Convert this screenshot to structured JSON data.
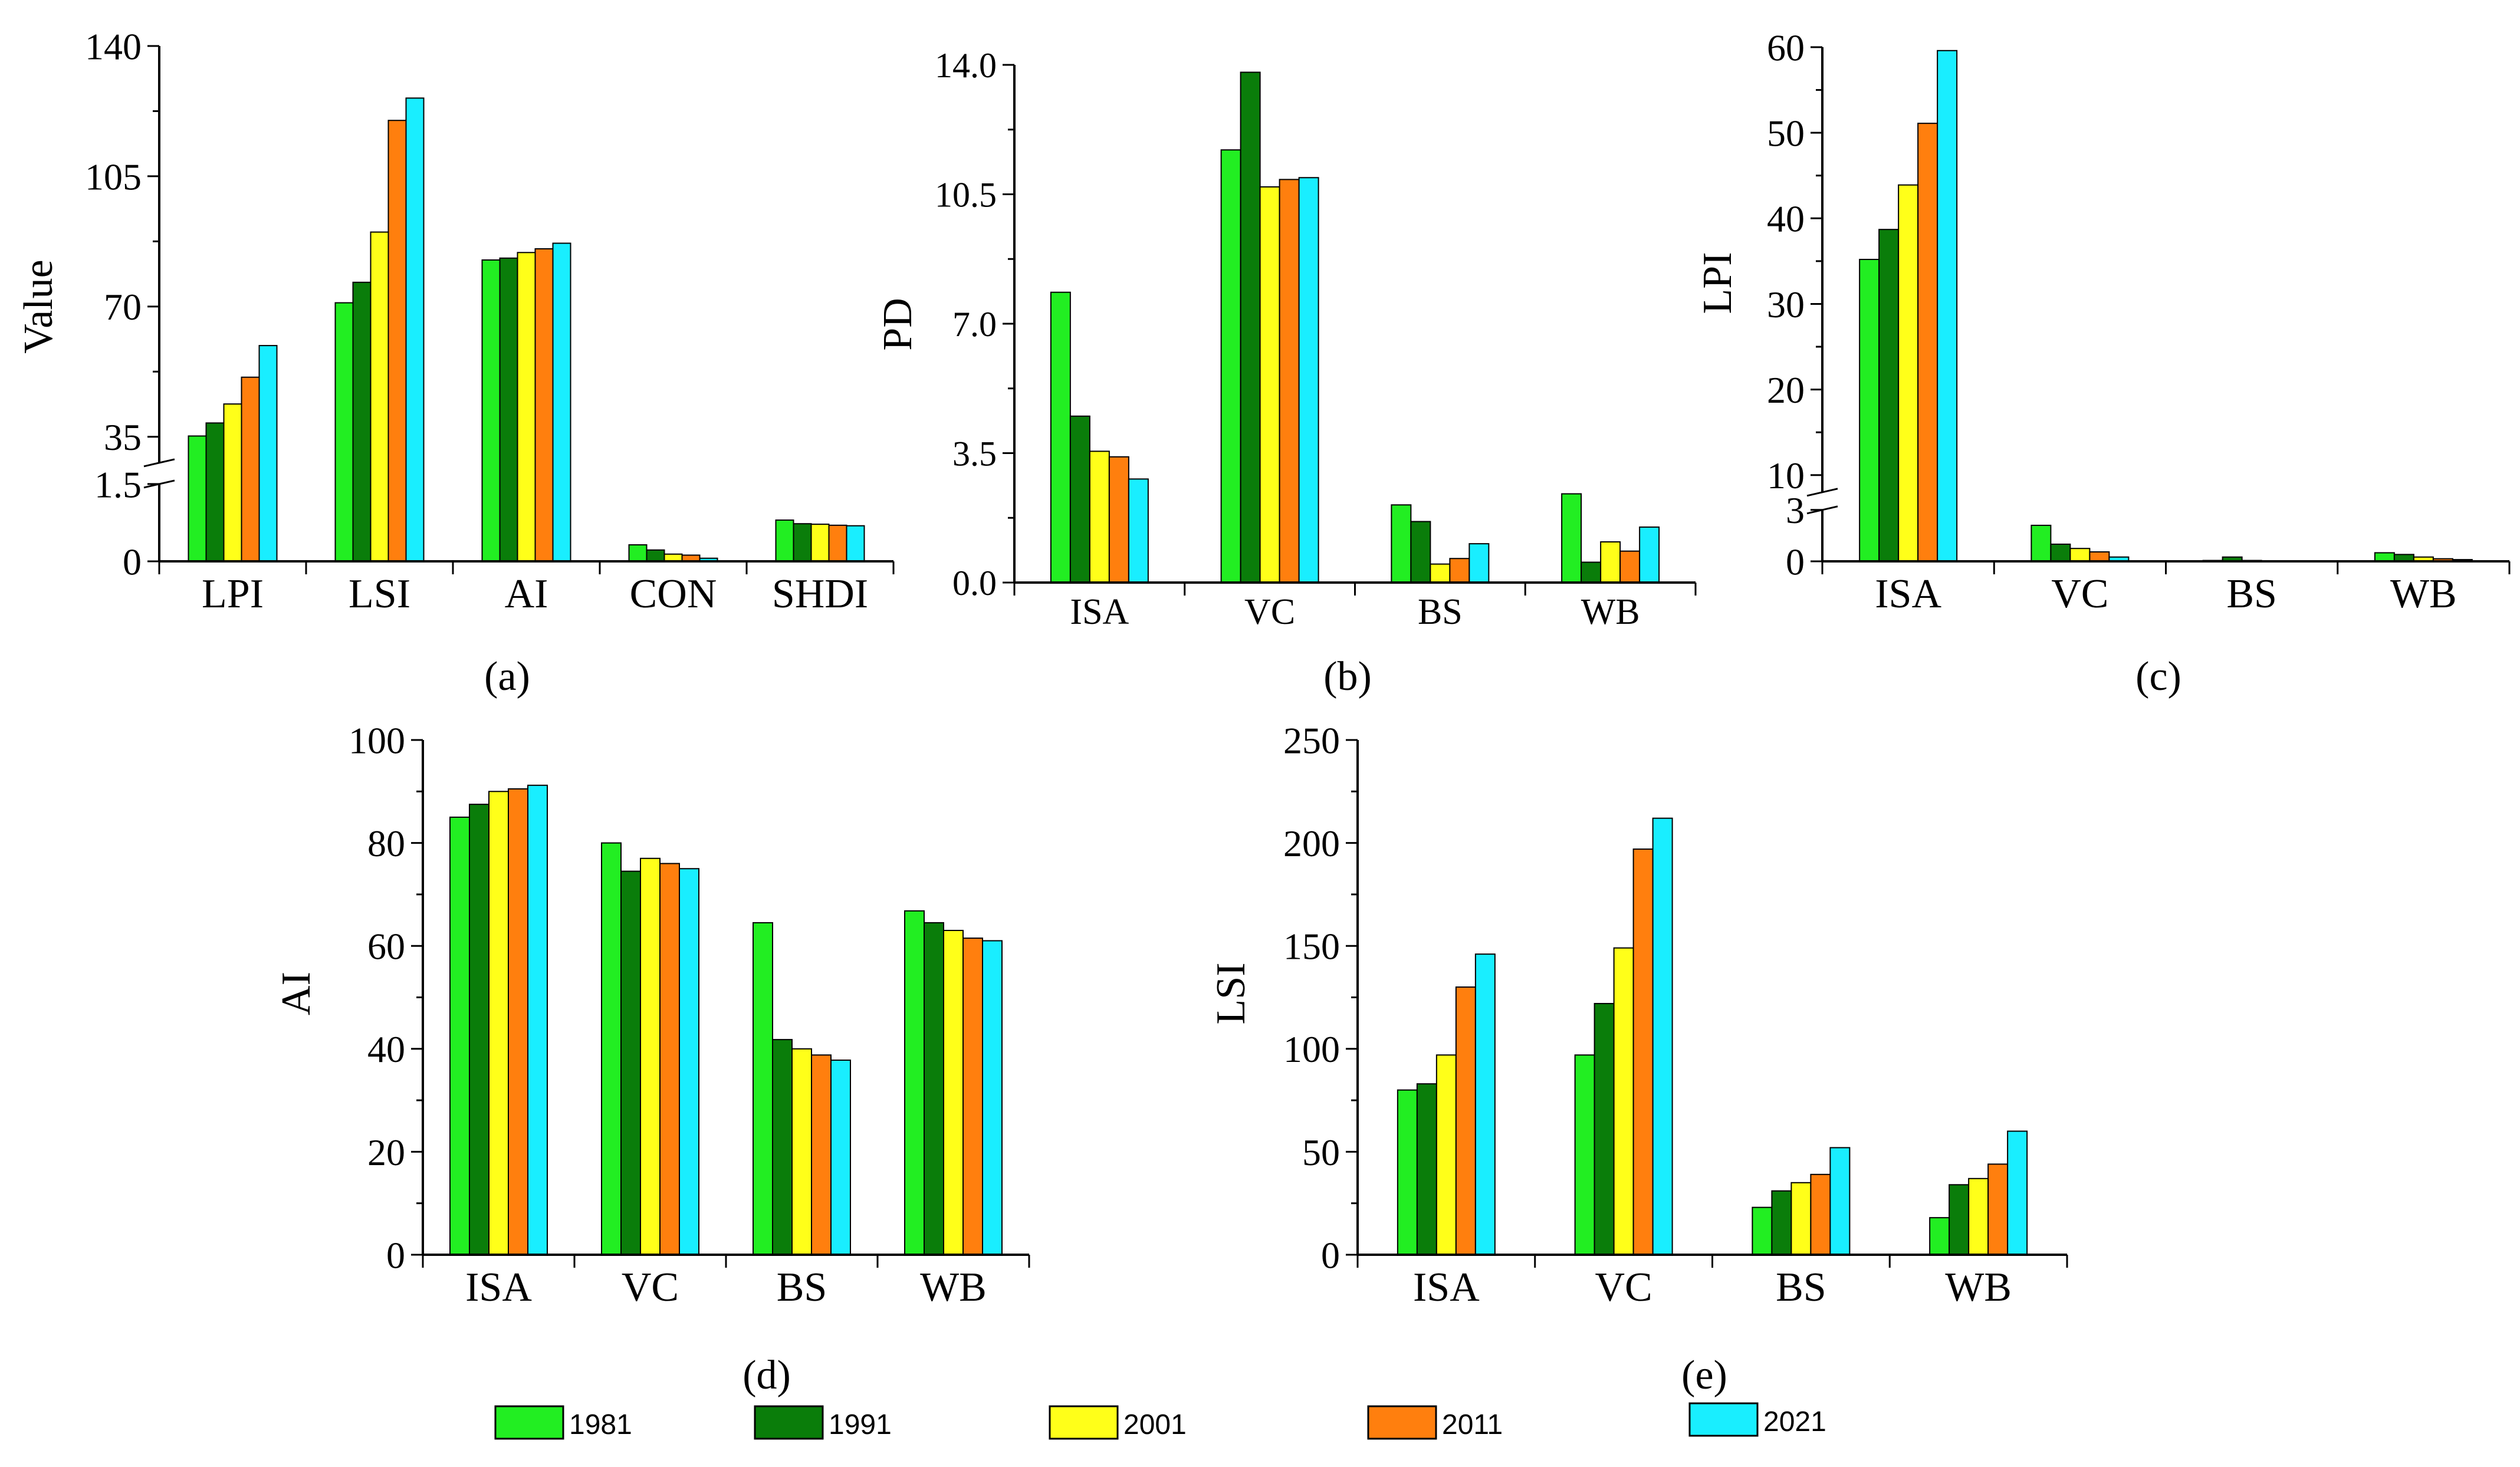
{
  "years": [
    "1981",
    "1991",
    "2001",
    "2011",
    "2021"
  ],
  "colors": [
    "#22ee22",
    "#0a7d0a",
    "#ffff19",
    "#ff7f0e",
    "#19eeff"
  ],
  "chart_data": [
    {
      "id": "a",
      "type": "bar",
      "label": "(a)",
      "ylabel": "Value",
      "categories": [
        "LPI",
        "LSI",
        "AI",
        "CON",
        "SHDI"
      ],
      "broken_axis": {
        "lower": [
          0,
          1.5
        ],
        "upper": [
          28,
          140
        ]
      },
      "yticks": [
        "0",
        "1.5",
        "35",
        "70",
        "105",
        "140"
      ],
      "series": [
        {
          "name": "1981",
          "values": [
            35.2,
            71.0,
            82.5,
            0.32,
            0.8
          ]
        },
        {
          "name": "1991",
          "values": [
            38.7,
            76.5,
            83.0,
            0.22,
            0.73
          ]
        },
        {
          "name": "2001",
          "values": [
            43.8,
            90.0,
            84.5,
            0.14,
            0.72
          ]
        },
        {
          "name": "2011",
          "values": [
            51.0,
            120.0,
            85.5,
            0.12,
            0.7
          ]
        },
        {
          "name": "2021",
          "values": [
            59.5,
            126.0,
            87.0,
            0.06,
            0.69
          ]
        }
      ]
    },
    {
      "id": "b",
      "type": "bar",
      "label": "(b)",
      "ylabel": "PD",
      "categories": [
        "ISA",
        "VC",
        "BS",
        "WB"
      ],
      "ylim": [
        0,
        14.0
      ],
      "yticks": [
        "0.0",
        "3.5",
        "7.0",
        "10.5",
        "14.0"
      ],
      "series": [
        {
          "name": "1981",
          "values": [
            7.85,
            11.7,
            2.1,
            2.4
          ]
        },
        {
          "name": "1991",
          "values": [
            4.5,
            13.8,
            1.65,
            0.55
          ]
        },
        {
          "name": "2001",
          "values": [
            3.55,
            10.7,
            0.5,
            1.1
          ]
        },
        {
          "name": "2011",
          "values": [
            3.4,
            10.9,
            0.65,
            0.85
          ]
        },
        {
          "name": "2021",
          "values": [
            2.8,
            10.95,
            1.05,
            1.5
          ]
        }
      ]
    },
    {
      "id": "c",
      "type": "bar",
      "label": "(c)",
      "ylabel": "LPI",
      "categories": [
        "ISA",
        "VC",
        "BS",
        "WB"
      ],
      "broken_axis": {
        "lower": [
          0,
          3
        ],
        "upper": [
          8,
          60
        ]
      },
      "yticks": [
        "0",
        "3",
        "10",
        "20",
        "30",
        "40",
        "50",
        "60"
      ],
      "series": [
        {
          "name": "1981",
          "values": [
            35.2,
            2.1,
            0.05,
            0.5
          ]
        },
        {
          "name": "1991",
          "values": [
            38.7,
            1.0,
            0.25,
            0.4
          ]
        },
        {
          "name": "2001",
          "values": [
            43.9,
            0.75,
            0.05,
            0.25
          ]
        },
        {
          "name": "2011",
          "values": [
            51.1,
            0.55,
            0.03,
            0.15
          ]
        },
        {
          "name": "2021",
          "values": [
            59.6,
            0.25,
            0.02,
            0.1
          ]
        }
      ]
    },
    {
      "id": "d",
      "type": "bar",
      "label": "(d)",
      "ylabel": "AI",
      "categories": [
        "ISA",
        "VC",
        "BS",
        "WB"
      ],
      "ylim": [
        0,
        100
      ],
      "yticks": [
        "0",
        "20",
        "40",
        "60",
        "80",
        "100"
      ],
      "series": [
        {
          "name": "1981",
          "values": [
            85.0,
            80.0,
            64.5,
            66.8
          ]
        },
        {
          "name": "1991",
          "values": [
            87.5,
            74.5,
            41.8,
            64.5
          ]
        },
        {
          "name": "2001",
          "values": [
            90.0,
            77.0,
            40.0,
            63.0
          ]
        },
        {
          "name": "2011",
          "values": [
            90.5,
            76.0,
            38.8,
            61.5
          ]
        },
        {
          "name": "2021",
          "values": [
            91.2,
            75.0,
            37.8,
            61.0
          ]
        }
      ]
    },
    {
      "id": "e",
      "type": "bar",
      "label": "(e)",
      "ylabel": "LSI",
      "categories": [
        "ISA",
        "VC",
        "BS",
        "WB"
      ],
      "ylim": [
        0,
        250
      ],
      "yticks": [
        "0",
        "50",
        "100",
        "150",
        "200",
        "250"
      ],
      "series": [
        {
          "name": "1981",
          "values": [
            80,
            97,
            23,
            18
          ]
        },
        {
          "name": "1991",
          "values": [
            83,
            122,
            31,
            34
          ]
        },
        {
          "name": "2001",
          "values": [
            97,
            149,
            35,
            37
          ]
        },
        {
          "name": "2011",
          "values": [
            130,
            197,
            39,
            44
          ]
        },
        {
          "name": "2021",
          "values": [
            146,
            212,
            52,
            60
          ]
        }
      ]
    }
  ]
}
